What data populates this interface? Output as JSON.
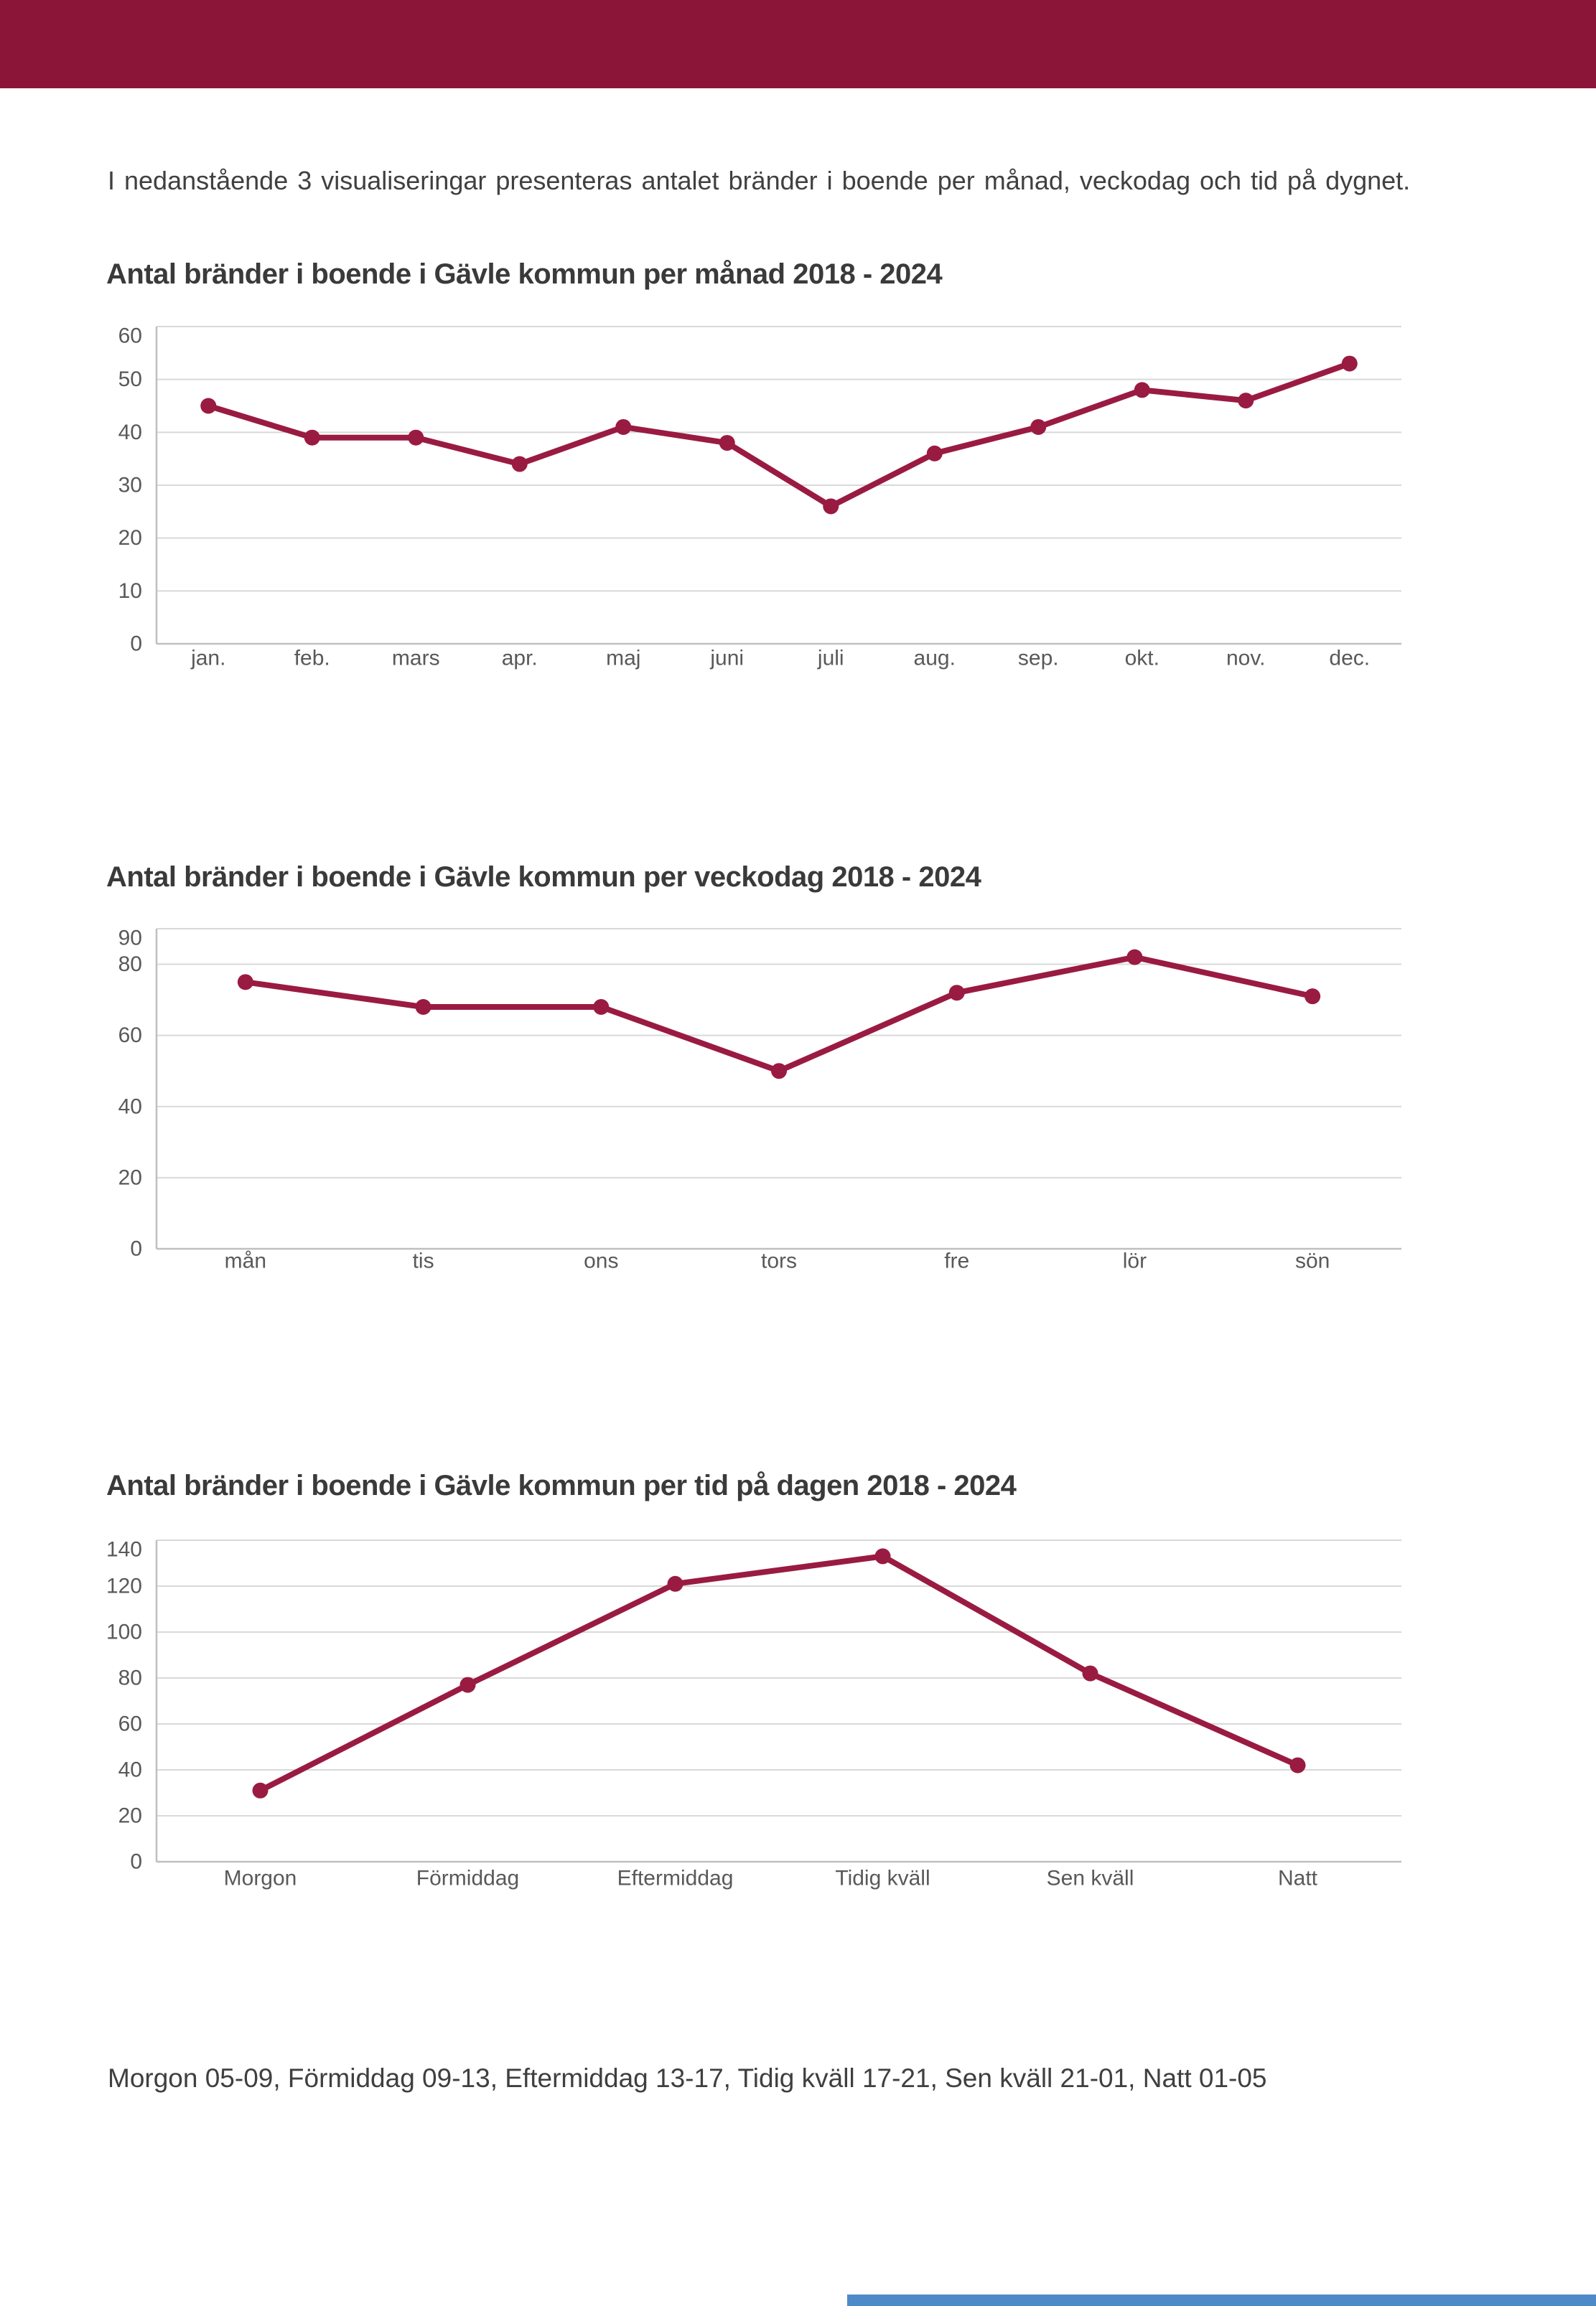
{
  "page": {
    "intro": "I nedanstående 3 visualiseringar presenteras antalet bränder i boende per månad, veckodag och tid på dygnet.",
    "footer_note": "Morgon 05-09, Förmiddag 09-13, Eftermiddag 13-17, Tidig kväll 17-21, Sen kväll 21-01, Natt 01-05",
    "colors": {
      "header_bar": "#8B1538",
      "line": "#9A1B42",
      "point": "#9A1B42",
      "grid": "#D9D9D9",
      "axis": "#BFBFBF",
      "title_text": "#3A3A3A",
      "body_text": "#404040",
      "tick_text": "#595959",
      "footer_bar_blue": "#4E8AC8"
    }
  },
  "chart_data": [
    {
      "type": "line",
      "title": "Antal bränder i boende i Gävle kommun per månad 2018 - 2024",
      "categories": [
        "jan.",
        "feb.",
        "mars",
        "apr.",
        "maj",
        "juni",
        "juli",
        "aug.",
        "sep.",
        "okt.",
        "nov.",
        "dec."
      ],
      "values": [
        45,
        39,
        39,
        34,
        41,
        38,
        26,
        36,
        41,
        48,
        46,
        53
      ],
      "xlabel": "",
      "ylabel": "",
      "ylim": [
        0,
        60
      ],
      "yticks": [
        0,
        10,
        20,
        30,
        40,
        50,
        60
      ],
      "grid": "horizontal",
      "legend": "none"
    },
    {
      "type": "line",
      "title": "Antal bränder i boende i Gävle kommun per veckodag 2018 - 2024",
      "categories": [
        "mån",
        "tis",
        "ons",
        "tors",
        "fre",
        "lör",
        "sön"
      ],
      "values": [
        75,
        68,
        68,
        50,
        72,
        82,
        71
      ],
      "xlabel": "",
      "ylabel": "",
      "ylim": [
        0,
        90
      ],
      "yticks": [
        0,
        20,
        40,
        60,
        80,
        90
      ],
      "grid": "horizontal",
      "legend": "none"
    },
    {
      "type": "line",
      "title": "Antal bränder i boende i Gävle kommun per tid på dagen 2018 - 2024",
      "categories": [
        "Morgon",
        "Förmiddag",
        "Eftermiddag",
        "Tidig kväll",
        "Sen kväll",
        "Natt"
      ],
      "values": [
        31,
        77,
        121,
        133,
        82,
        42
      ],
      "xlabel": "",
      "ylabel": "",
      "ylim": [
        0,
        140
      ],
      "yticks": [
        0,
        20,
        40,
        60,
        80,
        100,
        120,
        140
      ],
      "grid": "horizontal",
      "legend": "none"
    }
  ]
}
